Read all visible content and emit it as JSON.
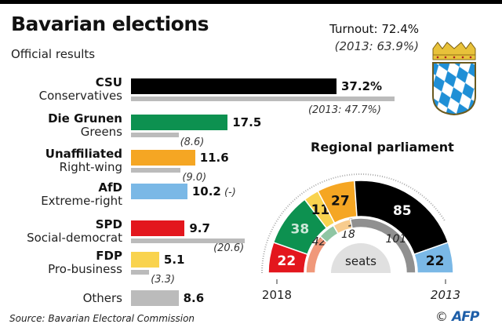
{
  "header": {
    "title": "Bavarian elections",
    "subtitle": "Official results",
    "turnout": "Turnout: 72.4%",
    "turnout_prev": "(2013: 63.9%)"
  },
  "footer": {
    "source": "Source: Bavarian Electoral Commission",
    "copyright": "©",
    "agency": "AFP"
  },
  "colors": {
    "CSU": "#000000",
    "Greens": "#0d9150",
    "Unaffiliated": "#f5a623",
    "AfD": "#7ab8e6",
    "SPD": "#e3161d",
    "FDP": "#f9d34e",
    "Others": "#bbbbbb",
    "previous": "#bbbbbb"
  },
  "chart_data": [
    {
      "type": "bar",
      "title": "Official results (%)",
      "categories": [
        "CSU",
        "Die Grunen",
        "Unaffiliated",
        "AfD",
        "SPD",
        "FDP",
        "Others"
      ],
      "descriptions": [
        "Conservatives",
        "Greens",
        "Right-wing",
        "Extreme-right",
        "Social-democrat",
        "Pro-business",
        ""
      ],
      "series": [
        {
          "name": "2018",
          "values": [
            37.2,
            17.5,
            11.6,
            10.2,
            9.7,
            5.1,
            8.6
          ]
        },
        {
          "name": "2013",
          "values": [
            47.7,
            8.6,
            9.0,
            null,
            20.6,
            3.3,
            null
          ]
        }
      ],
      "value_labels": [
        "37.2%",
        "17.5",
        "11.6",
        "10.2",
        "9.7",
        "5.1",
        "8.6"
      ],
      "prev_labels": [
        "(2013: 47.7%)",
        "(8.6)",
        "(9.0)",
        "(-)",
        "(20.6)",
        "(3.3)",
        ""
      ],
      "xlim": [
        0,
        50
      ]
    },
    {
      "type": "pie",
      "title": "Regional parliament",
      "center_label": "seats",
      "series": [
        {
          "name": "2018",
          "categories": [
            "SPD",
            "Greens",
            "FDP",
            "Unaffiliated",
            "CSU",
            "AfD"
          ],
          "values": [
            22,
            38,
            11,
            27,
            85,
            22
          ]
        },
        {
          "name": "2013",
          "categories": [
            "SPD",
            "Greens",
            "Unaffiliated",
            "CSU"
          ],
          "values": [
            42,
            18,
            19,
            101
          ]
        }
      ],
      "year_labels": [
        "2018",
        "2013"
      ]
    }
  ]
}
